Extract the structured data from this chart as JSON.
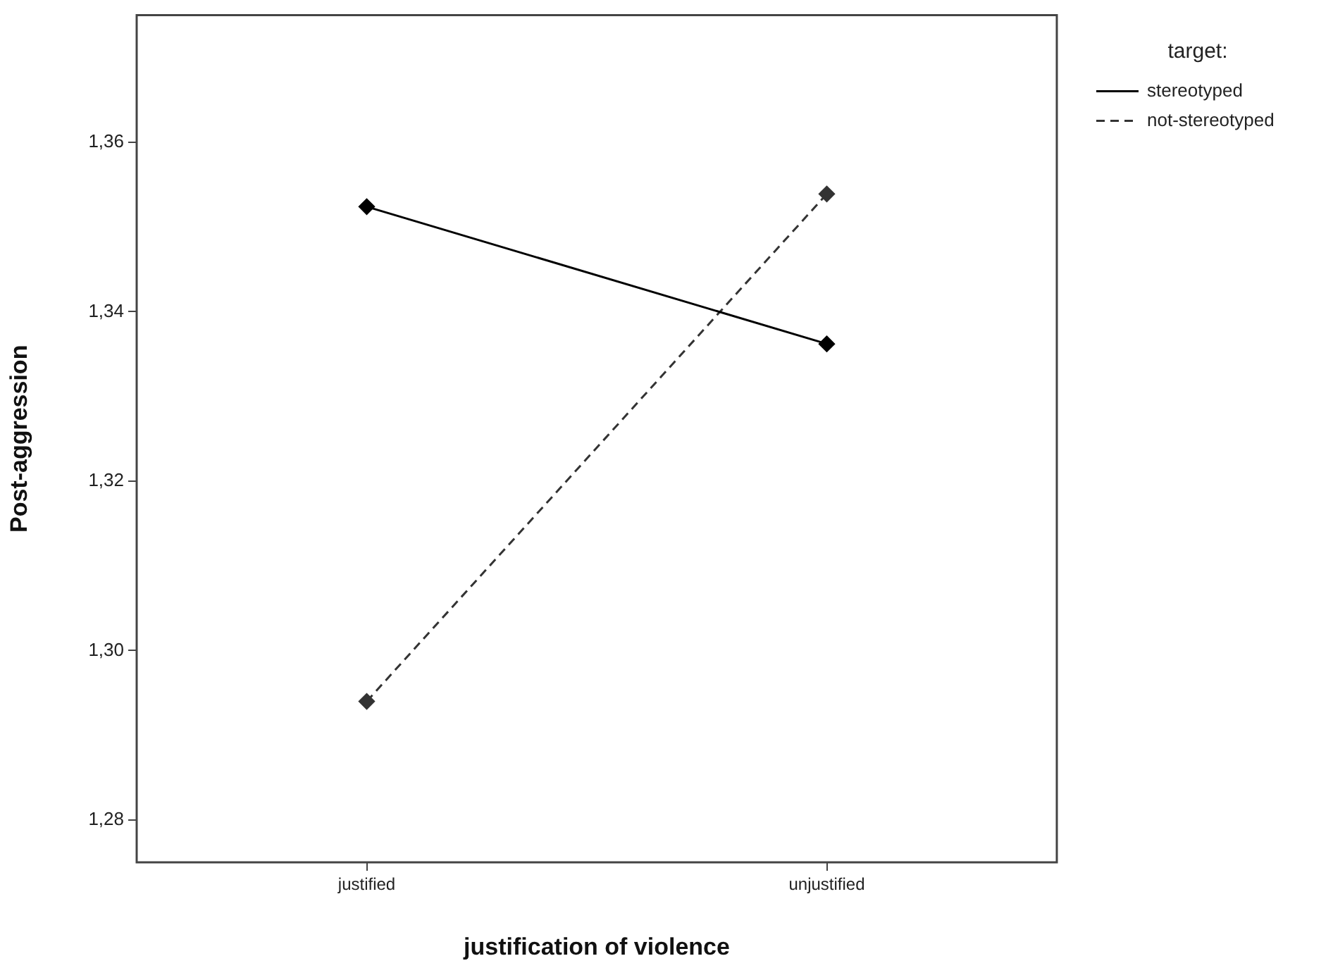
{
  "chart_data": {
    "type": "line",
    "xlabel": "justification of violence",
    "ylabel": "Post-aggression",
    "legend_title": "target:",
    "categories": [
      "justified",
      "unjustified"
    ],
    "series": [
      {
        "name": "stereotyped",
        "color": "#000000",
        "line_style": "solid",
        "values": [
          1.3524,
          1.3362
        ]
      },
      {
        "name": "not-stereotyped",
        "color": "#333333",
        "line_style": "dashed",
        "values": [
          1.294,
          1.3539
        ]
      }
    ],
    "ylim": [
      1.275,
      1.375
    ],
    "yticks": [
      {
        "value": 1.28,
        "label": "1,28"
      },
      {
        "value": 1.3,
        "label": "1,30"
      },
      {
        "value": 1.32,
        "label": "1,32"
      },
      {
        "value": 1.34,
        "label": "1,34"
      },
      {
        "value": 1.36,
        "label": "1,36"
      }
    ],
    "marker": "diamond",
    "legend": "top right",
    "grid": false
  }
}
